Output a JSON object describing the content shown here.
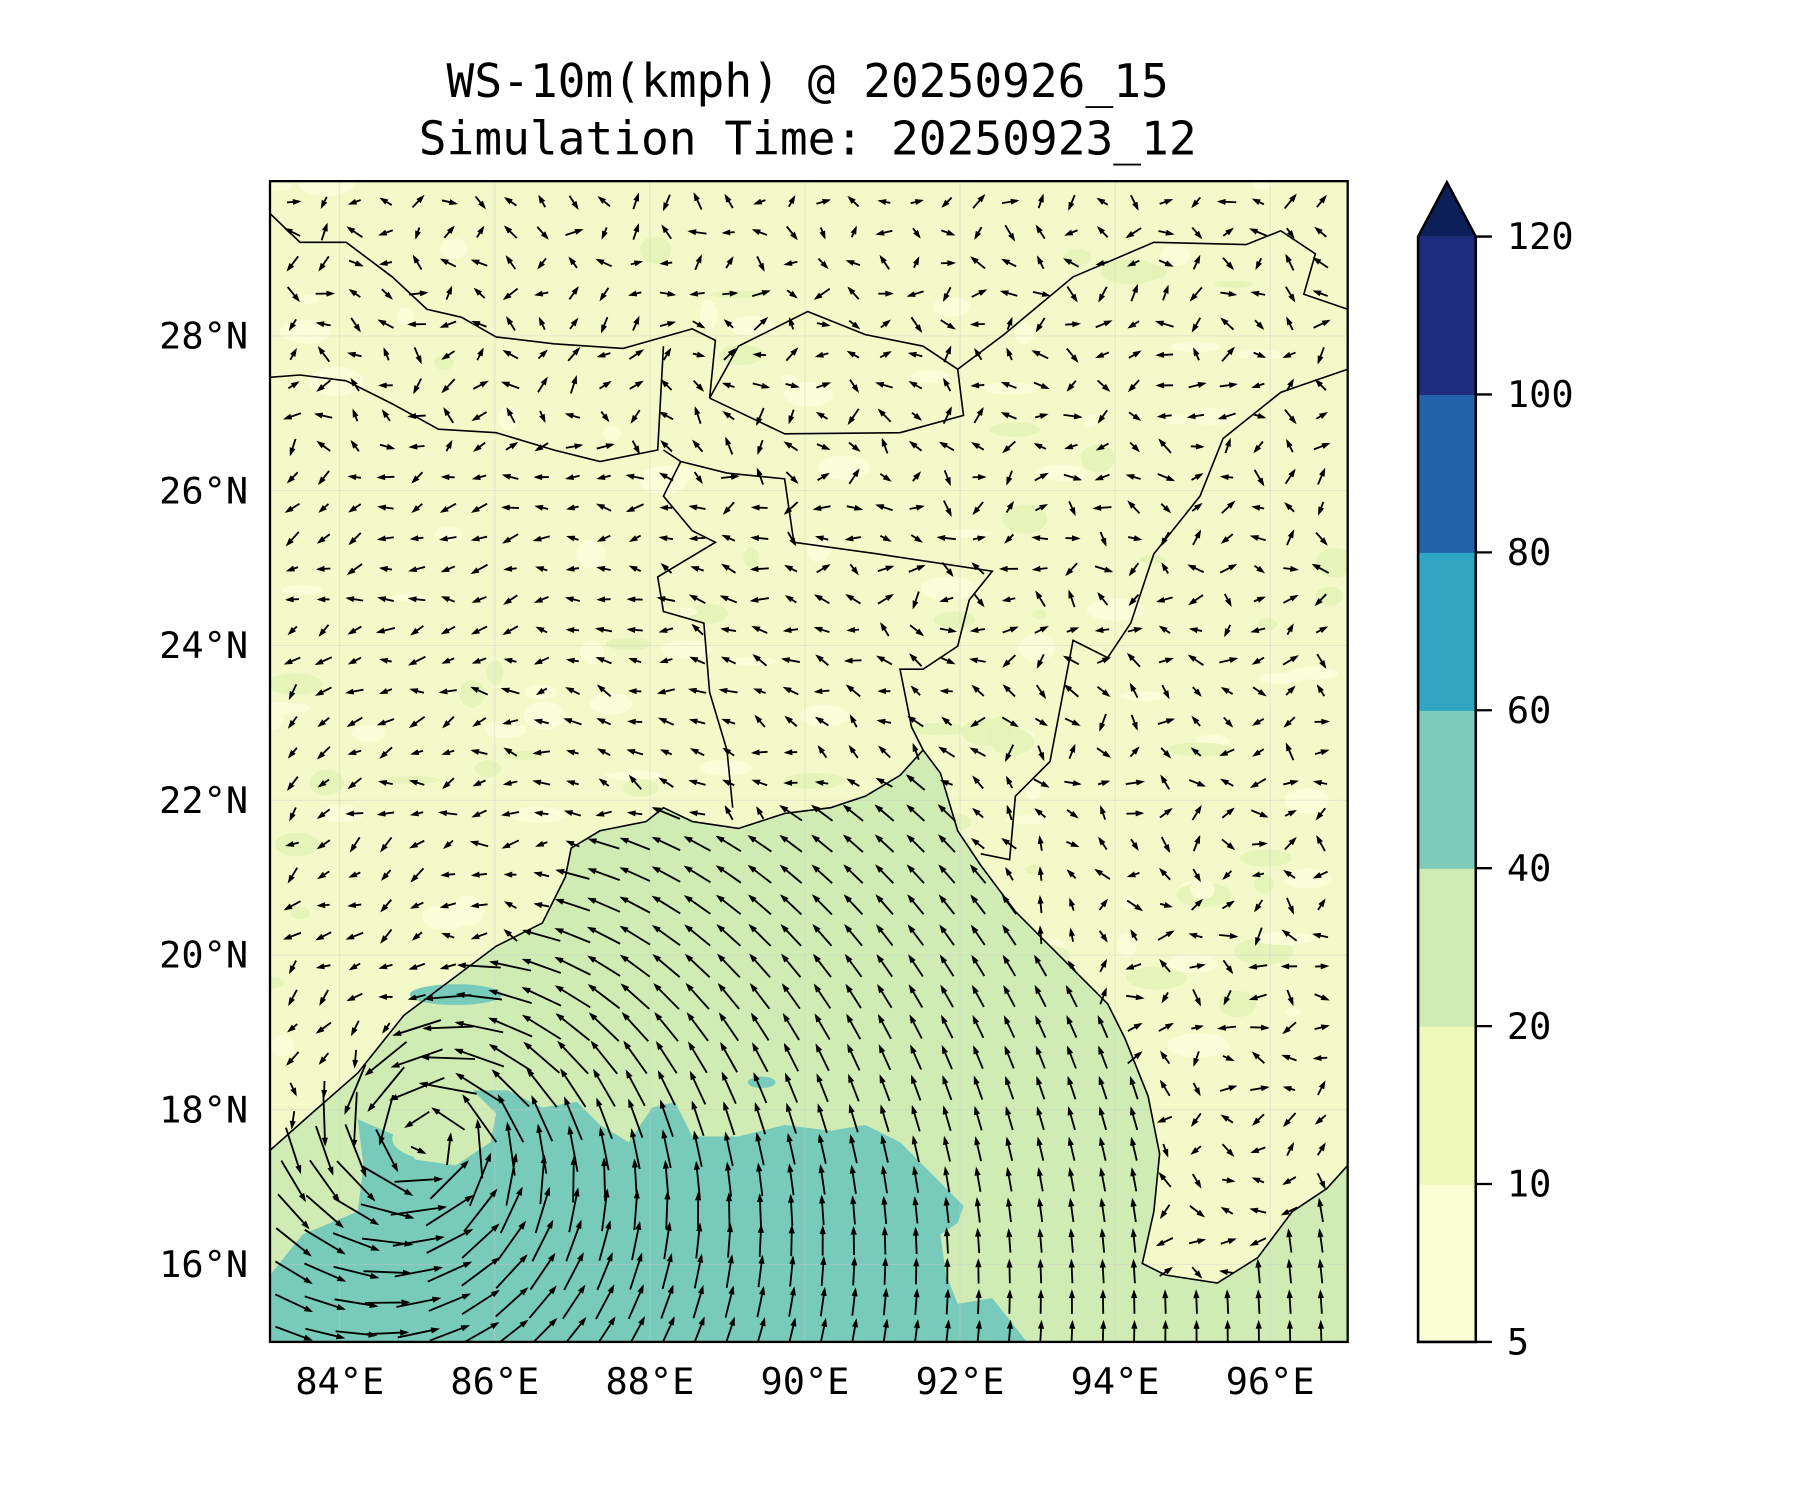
{
  "chart_data": {
    "type": "heatmap",
    "subtype": "filled-contour map with wind vectors",
    "title_line1": "WS-10m(kmph) @ 20250926_15",
    "title_line2": "Simulation Time: 20250923_12",
    "xlabel": "",
    "ylabel": "",
    "xlim": [
      83.1,
      97.0
    ],
    "ylim": [
      15.0,
      30.0
    ],
    "x_ticks": [
      84,
      86,
      88,
      90,
      92,
      94,
      96
    ],
    "x_tick_labels": [
      "84°E",
      "86°E",
      "88°E",
      "90°E",
      "92°E",
      "94°E",
      "96°E"
    ],
    "y_ticks": [
      16,
      18,
      20,
      22,
      24,
      26,
      28
    ],
    "y_tick_labels": [
      "16°N",
      "18°N",
      "20°N",
      "22°N",
      "24°N",
      "26°N",
      "28°N"
    ],
    "grid": true,
    "colorbar": {
      "levels": [
        5,
        10,
        20,
        40,
        60,
        80,
        100,
        120
      ],
      "tick_labels": [
        "5",
        "10",
        "20",
        "40",
        "60",
        "80",
        "100",
        "120"
      ],
      "colors": [
        "#fbfdd5",
        "#eef8b8",
        "#d0ecb4",
        "#7ccbbb",
        "#2fa4c3",
        "#2264aa",
        "#1d2c7e"
      ],
      "extend_color": "#0c1f58",
      "extend": "max",
      "placement": "right"
    },
    "cyclone_center": {
      "lon": 85.1,
      "lat": 17.6
    },
    "colors": {
      "land": "#f3f9c8",
      "sea": "#d0ecb4",
      "strong": "#78cabb"
    }
  }
}
